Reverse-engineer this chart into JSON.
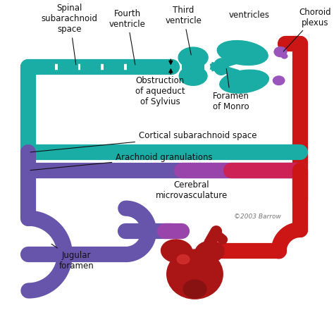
{
  "bg_color": "#ffffff",
  "teal": "#1AADA5",
  "teal_light": "#2DC8BF",
  "red": "#CC1515",
  "red_dark": "#991111",
  "blue_purple": "#6655AA",
  "blue_purple2": "#7766BB",
  "choroid_color": "#9955BB",
  "heart_red": "#AA1515",
  "heart_dark": "#881111",
  "labels": {
    "spinal": "Spinal\nsubarachnoid\nspace",
    "fourth": "Fourth\nventricle",
    "third": "Third\nventricle",
    "ventricles": "ventricles",
    "choroid": "Choroid\nplexus",
    "obstruction": "Obstruction\nof aqueduct\nof Sylvius",
    "foramen_monro": "Foramen\nof Monro",
    "cortical": "Cortical subarachnoid space",
    "arachnoid": "Arachnoid granulations",
    "cerebral": "Cerebral\nmicrovasculature",
    "jugular": "Jugular\nforamen",
    "copyright": "©2003 Barrow"
  },
  "label_fontsize": 8.5,
  "label_color": "#111111"
}
